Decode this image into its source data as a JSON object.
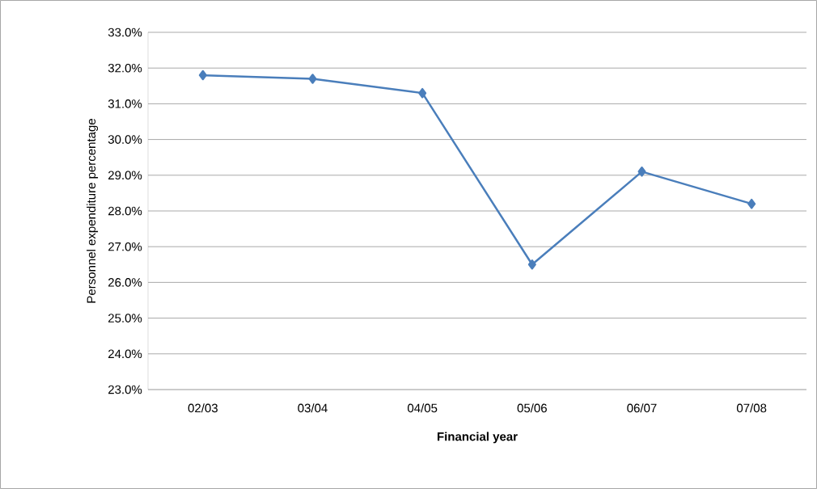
{
  "chart_data": {
    "type": "line",
    "xlabel": "Financial year",
    "ylabel": "Personnel expenditure percentage",
    "categories": [
      "02/03",
      "03/04",
      "04/05",
      "05/06",
      "06/07",
      "07/08"
    ],
    "series": [
      {
        "color": "#4a7ebb",
        "values": [
          31.8,
          31.7,
          31.3,
          26.5,
          29.1,
          28.2
        ]
      }
    ],
    "ylim": [
      23,
      33
    ],
    "yticks": [
      {
        "value": 23,
        "label": "23.0%"
      },
      {
        "value": 24,
        "label": "24.0%"
      },
      {
        "value": 25,
        "label": "25.0%"
      },
      {
        "value": 26,
        "label": "26.0%"
      },
      {
        "value": 27,
        "label": "27.0%"
      },
      {
        "value": 28,
        "label": "28.0%"
      },
      {
        "value": 29,
        "label": "29.0%"
      },
      {
        "value": 30,
        "label": "30.0%"
      },
      {
        "value": 31,
        "label": "31.0%"
      },
      {
        "value": 32,
        "label": "32.0%"
      },
      {
        "value": 33,
        "label": "33.0%"
      }
    ],
    "grid": "y",
    "marker": "diamond",
    "line_style": "solid",
    "legend": false
  }
}
